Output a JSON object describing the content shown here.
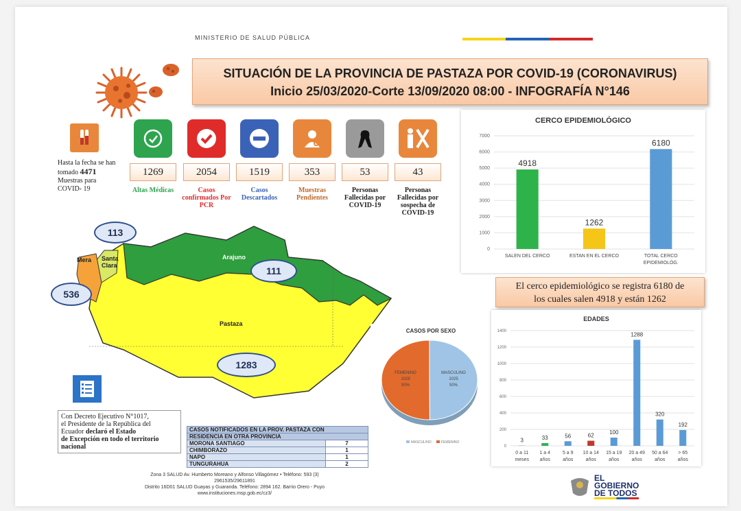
{
  "header": {
    "ministry": "MINISTERIO DE SALUD PÚBLICA",
    "title_line1": "SITUACIÓN DE LA PROVINCIA DE PASTAZA POR COVID-19 (CORONAVIRUS)",
    "title_line2": "Inicio 25/03/2020-Corte 13/09/2020 08:00 - INFOGRAFÍA N°146",
    "flag_colors": [
      "#f7d417",
      "#2464b6",
      "#d42a2a"
    ]
  },
  "samples": {
    "line1": "Hasta la fecha se han",
    "line2_prefix": "tomado",
    "count": "4471",
    "line3": "Muestras para",
    "line4": "COVID- 19"
  },
  "stats": [
    {
      "value": "1269",
      "label": "Altas Médicas",
      "color": "#2ea44f",
      "icon": "recovery-icon"
    },
    {
      "value": "2054",
      "label": "Casos confirmados Por PCR",
      "color": "#e02b2b",
      "icon": "check-icon"
    },
    {
      "value": "1519",
      "label": "Casos Descartados",
      "color": "#3a63b8",
      "icon": "minus-icon"
    },
    {
      "value": "353",
      "label": "Muestras Pendientes",
      "color": "#e8873c",
      "icon": "doctor-icon"
    },
    {
      "value": "53",
      "label": "Personas Fallecidas por COVID-19",
      "color": "#9a9a9a",
      "icon": "mourning-ribbon-icon"
    },
    {
      "value": "43",
      "label": "Personas Fallecidas por sospecha de COVID-19",
      "color": "#e8873c",
      "icon": "people-cross-icon"
    }
  ],
  "map": {
    "labels": {
      "mera": "Mera",
      "santa_clara": "Santa Clara",
      "arajuno": "Arajuno",
      "pastaza": "Pastaza"
    },
    "counts": {
      "mera": "536",
      "santa_clara": "113",
      "arajuno": "111",
      "pastaza": "1283"
    },
    "colors": {
      "arajuno": "#2e9e3e",
      "pastaza": "#ffff33",
      "mera": "#f6a23a",
      "santa_clara": "#d9e866"
    }
  },
  "decree": {
    "line1": "Con Decreto Ejecutivo N°1017,",
    "line2": "el Presidente de la República del",
    "line3_prefix": "Ecuador",
    "line3_bold": "declaró el Estado",
    "line4": "de Excepción en todo el territorio",
    "line5": "nacional"
  },
  "other_province": {
    "header1": "CASOS NOTIFICADOS EN LA PROV. PASTAZA CON",
    "header2": "RESIDENCIA EN OTRA PROVINCIA",
    "rows": [
      {
        "name": "MORONA SANTIAGO",
        "count": "7"
      },
      {
        "name": "CHIMBORAZO",
        "count": "1"
      },
      {
        "name": "NAPO",
        "count": "1"
      },
      {
        "name": "TUNGURAHUA",
        "count": "2"
      }
    ]
  },
  "footer": {
    "line1": "Zona 3 SALUD Av. Humberto Moreano y Alfonso Villagómez • Teléfono: 593 (3)",
    "line2": "2961535/29611891",
    "line3": "Distrito 16D01 SALUD Guayas y Guaranda. Teléfono: 2894 162. Barrio Orero - Puyo",
    "line4": "www.instituciones.msp.gob.ec/cz3/"
  },
  "callout": {
    "line1": "El cerco epidemiológico se registra 6180 de",
    "line2": "los cuales salen 4918 y están 1262"
  },
  "gov_logo": {
    "line1": "EL",
    "line2": "GOBIERNO",
    "line3": "DE TODOS"
  },
  "chart_data": [
    {
      "type": "bar",
      "title": "CERCO EPIDEMIOLÓGICO",
      "categories": [
        "SALEN DEL CERCO",
        "ESTAN EN EL CERCO",
        "TOTAL CERCO EPIDEMIOLÓG."
      ],
      "values": [
        4918,
        1262,
        6180
      ],
      "colors": [
        "#2eb34a",
        "#f5c518",
        "#5b9bd5"
      ],
      "ylim": [
        0,
        7000
      ],
      "yticks": [
        0,
        1000,
        2000,
        3000,
        4000,
        5000,
        6000,
        7000
      ],
      "grid": true
    },
    {
      "type": "pie",
      "title": "CASOS POR SEXO",
      "labels": [
        "FEMENINO",
        "MASCULINO"
      ],
      "values": [
        1029,
        1025
      ],
      "percent_labels": [
        "50%",
        "50%"
      ],
      "colors": [
        "#e26a2c",
        "#9fc4e6"
      ],
      "legend": [
        "MASCULINO",
        "FEMENINO"
      ],
      "legend_position": "bottom"
    },
    {
      "type": "bar",
      "title": "EDADES",
      "categories": [
        "0 a 11 meses",
        "1 a 4 años",
        "5 a 9 años",
        "10 a 14 años",
        "15 a 19 años",
        "20 a 49 años",
        "50 a 64 años",
        "> 65 años"
      ],
      "values": [
        3,
        33,
        56,
        62,
        100,
        1288,
        320,
        192
      ],
      "colors": [
        "#5b9bd5",
        "#2eb34a",
        "#5b9bd5",
        "#c0392b",
        "#5b9bd5",
        "#5b9bd5",
        "#5b9bd5",
        "#5b9bd5"
      ],
      "ylim": [
        0,
        1400
      ],
      "yticks": [
        0,
        200,
        400,
        600,
        800,
        1000,
        1200,
        1400
      ],
      "grid": true
    }
  ]
}
